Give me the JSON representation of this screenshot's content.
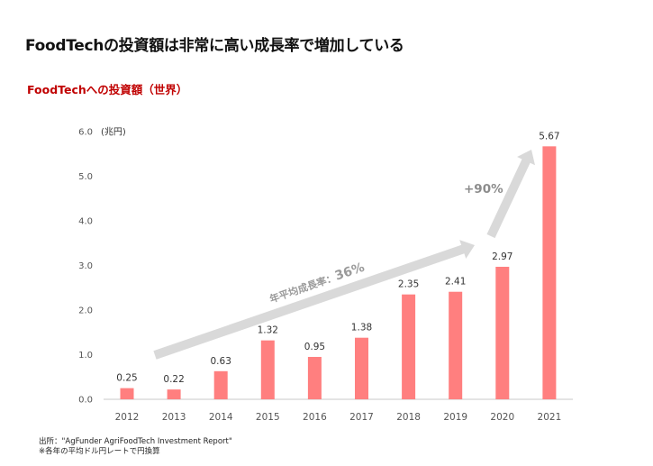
{
  "headline": "FoodTechの投資額は非常に高い成長率で増加している",
  "chart_data": {
    "type": "bar",
    "title": "FoodTechへの投資額（世界）",
    "ylabel": "(兆円)",
    "xlabel": "",
    "ylim": [
      0,
      6
    ],
    "yticks": [
      "0.0",
      "1.0",
      "2.0",
      "3.0",
      "4.0",
      "5.0",
      "6.0"
    ],
    "categories": [
      "2012",
      "2013",
      "2014",
      "2015",
      "2016",
      "2017",
      "2018",
      "2019",
      "2020",
      "2021"
    ],
    "values": [
      0.25,
      0.22,
      0.63,
      1.32,
      0.95,
      1.38,
      2.35,
      2.41,
      2.97,
      5.67
    ],
    "value_labels": [
      "0.25",
      "0.22",
      "0.63",
      "1.32",
      "0.95",
      "1.38",
      "2.35",
      "2.41",
      "2.97",
      "5.67"
    ],
    "bar_color": "#ff7f7f",
    "annotations": {
      "cagr_prefix": "年平均成長率：",
      "cagr_value": "36%",
      "jump": "+90%"
    }
  },
  "footer": {
    "source": "出所：\"AgFunder AgriFoodTech Investment Report\"",
    "note": "※各年の平均ドル円レートで円換算"
  }
}
